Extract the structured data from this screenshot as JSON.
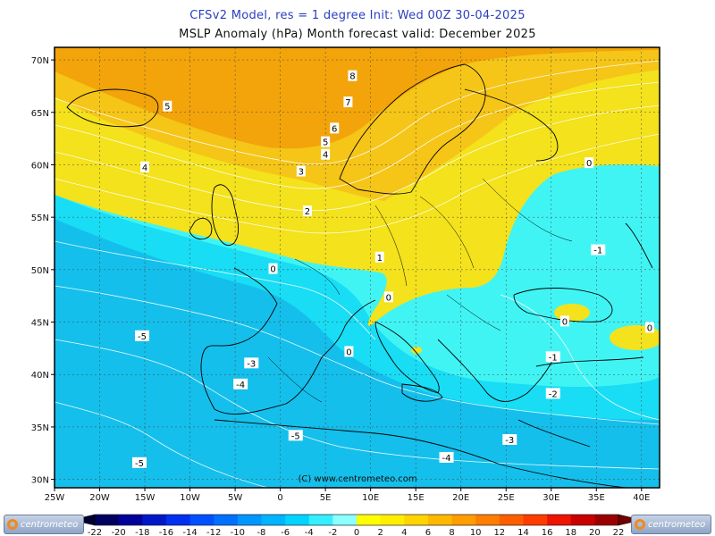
{
  "header": {
    "title_line1": "CFSv2 Model, res = 1 degree    Init: Wed 00Z 30-04-2025",
    "title_line2": "MSLP Anomaly (hPa)     Month forecast valid: December 2025"
  },
  "map": {
    "copyright": "(C) www.centrometeo.com",
    "lon_labels": [
      "25W",
      "20W",
      "15W",
      "10W",
      "5W",
      "0",
      "5E",
      "10E",
      "15E",
      "20E",
      "25E",
      "30E",
      "35E",
      "40E"
    ],
    "lat_labels": [
      "70N",
      "65N",
      "60N",
      "55N",
      "50N",
      "45N",
      "40N",
      "35N",
      "30N"
    ],
    "contour_labels": [
      {
        "text": "8",
        "lon": 8,
        "lat": 68.5
      },
      {
        "text": "7",
        "lon": 7.5,
        "lat": 66
      },
      {
        "text": "6",
        "lon": 6,
        "lat": 63.5
      },
      {
        "text": "5",
        "lon": 5,
        "lat": 62.2
      },
      {
        "text": "5",
        "lon": -12.5,
        "lat": 65.6
      },
      {
        "text": "4",
        "lon": -15,
        "lat": 59.8
      },
      {
        "text": "4",
        "lon": 5,
        "lat": 61
      },
      {
        "text": "3",
        "lon": 2.3,
        "lat": 59.4
      },
      {
        "text": "2",
        "lon": 3,
        "lat": 55.6
      },
      {
        "text": "1",
        "lon": 11,
        "lat": 51.2
      },
      {
        "text": "0",
        "lon": 34.2,
        "lat": 60.2
      },
      {
        "text": "0",
        "lon": -0.8,
        "lat": 50.1
      },
      {
        "text": "0",
        "lon": 12,
        "lat": 47.4
      },
      {
        "text": "0",
        "lon": 7.6,
        "lat": 42.2
      },
      {
        "text": "0",
        "lon": 31.5,
        "lat": 45.1
      },
      {
        "text": "0",
        "lon": 40.9,
        "lat": 44.5
      },
      {
        "text": "-1",
        "lon": 35.2,
        "lat": 51.9
      },
      {
        "text": "-1",
        "lon": 30.2,
        "lat": 41.7
      },
      {
        "text": "-2",
        "lon": 30.2,
        "lat": 38.2
      },
      {
        "text": "-3",
        "lon": -3.2,
        "lat": 41.1
      },
      {
        "text": "-3",
        "lon": 25.4,
        "lat": 33.8
      },
      {
        "text": "-4",
        "lon": -4.4,
        "lat": 39.1
      },
      {
        "text": "-4",
        "lon": 18.4,
        "lat": 32.1
      },
      {
        "text": "-5",
        "lon": -15.3,
        "lat": 43.7
      },
      {
        "text": "-5",
        "lon": 1.7,
        "lat": 34.2
      },
      {
        "text": "-5",
        "lon": -15.6,
        "lat": 31.6
      }
    ]
  },
  "colorbar": {
    "ticks": [
      "-22",
      "-20",
      "-18",
      "-16",
      "-14",
      "-12",
      "-10",
      "-8",
      "-6",
      "-4",
      "-2",
      "0",
      "2",
      "4",
      "6",
      "8",
      "10",
      "12",
      "14",
      "16",
      "18",
      "20",
      "22"
    ],
    "colors": [
      "#000060",
      "#00009a",
      "#0018c8",
      "#0030f0",
      "#0050ff",
      "#0070ff",
      "#0096ff",
      "#00b4ff",
      "#00d4ff",
      "#35eeff",
      "#8cffff",
      "#ffff00",
      "#ffee00",
      "#ffd400",
      "#ffb800",
      "#ff9c00",
      "#ff7e00",
      "#ff5e00",
      "#ff3c00",
      "#ee1400",
      "#c80000",
      "#9a0000"
    ]
  },
  "logos": {
    "left_text": "centrometeo",
    "right_text": "centrometeo"
  },
  "field_colors": {
    "pos_high": "#f2a40a",
    "pos_mid": "#f5c518",
    "pos_low": "#f3e21c",
    "neg_0_2": "#41f4f4",
    "neg_2_4": "#18ddf4",
    "neg_4_6": "#14bfeb"
  }
}
